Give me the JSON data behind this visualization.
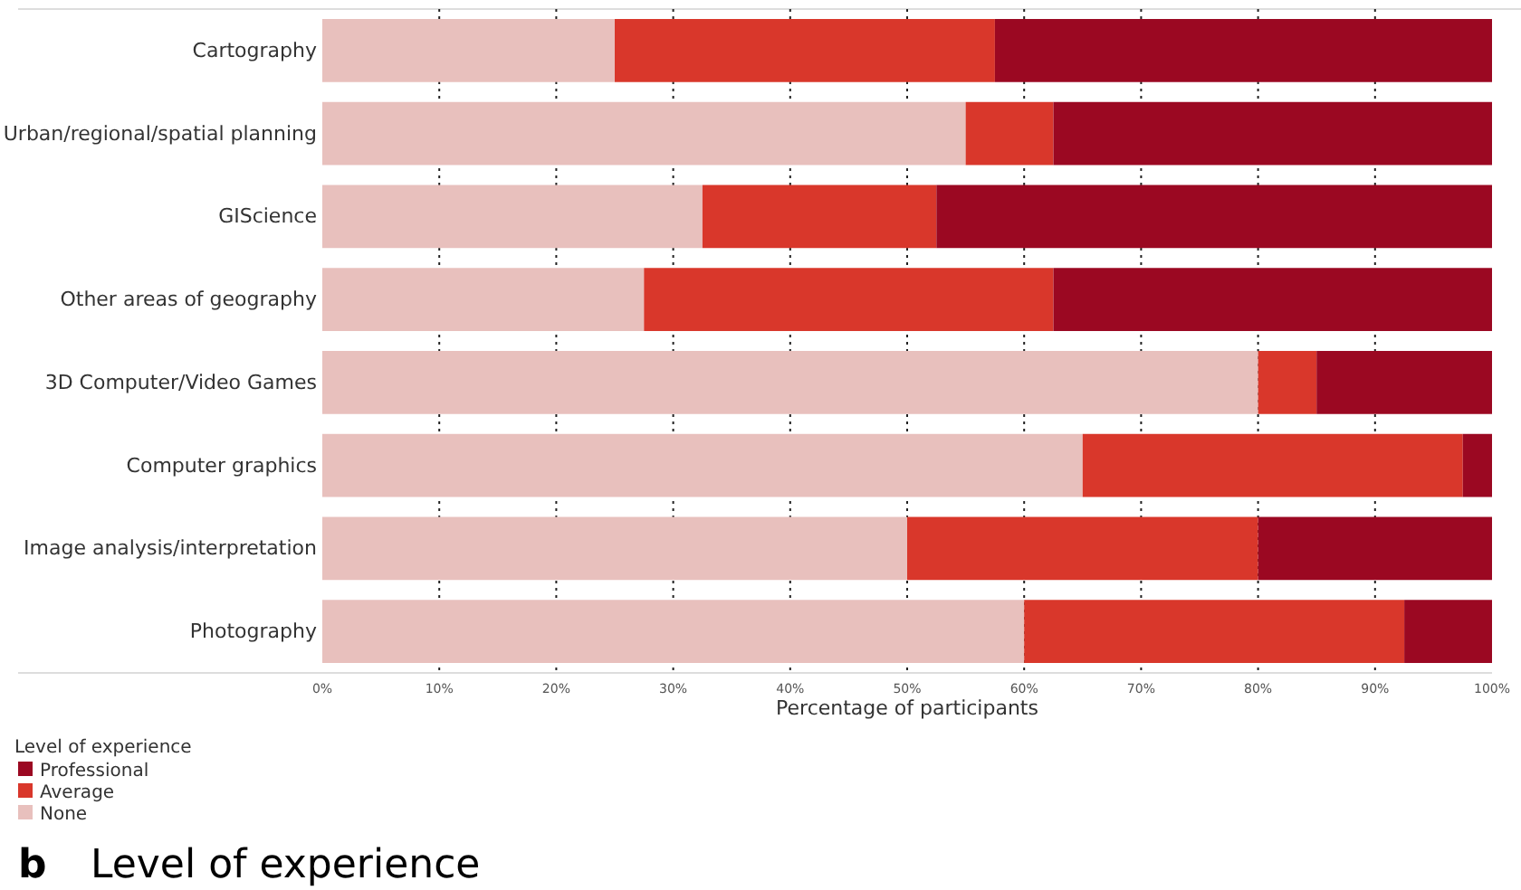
{
  "chart_data": {
    "type": "bar",
    "orientation": "horizontal",
    "stacked": true,
    "title": "Level of experience",
    "annotations": [
      "b"
    ],
    "xlabel": "Percentage of participants",
    "legend_title": "Level of experience",
    "legend": "bottom left",
    "grid": "x",
    "categories": [
      "Cartography",
      "Urban/regional/spatial planning",
      "GIScience",
      "Other areas of geography",
      "3D Computer/Video Games",
      "Computer graphics",
      "Image analysis/interpretation",
      "Photography"
    ],
    "series": [
      {
        "name": "None",
        "color": "#e8c0bd",
        "values": [
          25,
          55,
          32.5,
          27.5,
          80,
          65,
          50,
          60
        ]
      },
      {
        "name": "Average",
        "color": "#d9372b",
        "values": [
          32.5,
          7.5,
          20,
          35,
          5,
          32.5,
          30,
          32.5
        ]
      },
      {
        "name": "Professional",
        "color": "#9b0822",
        "values": [
          42.5,
          37.5,
          47.5,
          37.5,
          15,
          2.5,
          20,
          7.5
        ]
      }
    ],
    "xlim": [
      0,
      100
    ],
    "xticks": [
      {
        "value": 0,
        "label": "0%"
      },
      {
        "value": 10,
        "label": "10%"
      },
      {
        "value": 20,
        "label": "20%"
      },
      {
        "value": 30,
        "label": "30%"
      },
      {
        "value": 40,
        "label": "40%"
      },
      {
        "value": 50,
        "label": "50%"
      },
      {
        "value": 60,
        "label": "60%"
      },
      {
        "value": 70,
        "label": "70%"
      },
      {
        "value": 80,
        "label": "80%"
      },
      {
        "value": 90,
        "label": "90%"
      },
      {
        "value": 100,
        "label": "100%"
      }
    ]
  }
}
